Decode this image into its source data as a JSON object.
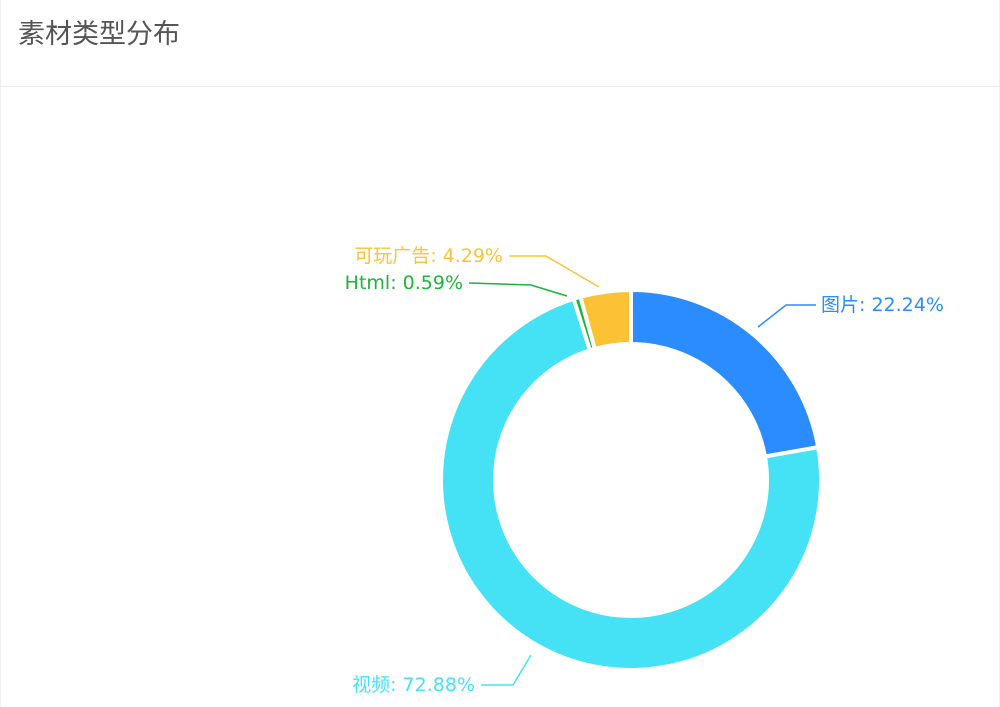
{
  "card": {
    "title": "素材类型分布"
  },
  "chart_data": {
    "type": "pie",
    "subtype": "donut",
    "title": "素材类型分布",
    "slices": [
      {
        "name": "图片",
        "value": 22.24,
        "label": "图片: 22.24%",
        "color": "#2a8cfe"
      },
      {
        "name": "视频",
        "value": 72.88,
        "label": "视频: 72.88%",
        "color": "#45e2f6"
      },
      {
        "name": "Html",
        "value": 0.59,
        "label": "Html: 0.59%",
        "color": "#1cb53a"
      },
      {
        "name": "可玩广告",
        "value": 4.29,
        "label": "可玩广告: 4.29%",
        "color": "#fcc236"
      }
    ],
    "legend": "none"
  }
}
